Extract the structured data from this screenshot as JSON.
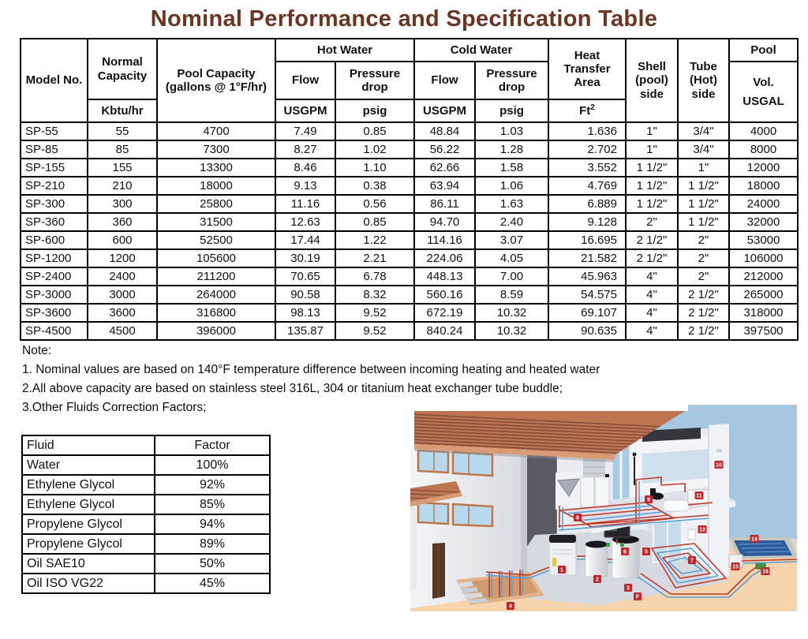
{
  "title": "Nominal Performance and Specification Table",
  "spec_table": {
    "header": {
      "model_no": "Model No.",
      "normal_capacity": "Normal Capacity",
      "normal_capacity_unit": "Kbtu/hr",
      "pool_capacity": "Pool Capacity (gallons @ 1°F/hr)",
      "hot_water": "Hot Water",
      "cold_water": "Cold Water",
      "flow": "Flow",
      "pressure_drop": "Pressure drop",
      "flow_unit": "USGPM",
      "pressure_unit": "psig",
      "heat_transfer_area": "Heat Transfer Area",
      "heat_area_unit_base": "Ft",
      "heat_area_unit_sup": "2",
      "shell_side": "Shell (pool) side",
      "tube_side": "Tube (Hot) side",
      "pool_label": "Pool",
      "pool_vol_line1": "Vol.",
      "pool_vol_line2": "USGAL"
    },
    "rows": [
      [
        "SP-55",
        "55",
        "4700",
        "7.49",
        "0.85",
        "48.84",
        "1.03",
        "1.636",
        "1\"",
        "3/4\"",
        "4000"
      ],
      [
        "SP-85",
        "85",
        "7300",
        "8.27",
        "1.02",
        "56.22",
        "1.28",
        "2.702",
        "1\"",
        "3/4\"",
        "8000"
      ],
      [
        "SP-155",
        "155",
        "13300",
        "8.46",
        "1.10",
        "62.66",
        "1.58",
        "3.552",
        "1 1/2\"",
        "1\"",
        "12000"
      ],
      [
        "SP-210",
        "210",
        "18000",
        "9.13",
        "0.38",
        "63.94",
        "1.06",
        "4.769",
        "1 1/2\"",
        "1 1/2\"",
        "18000"
      ],
      [
        "SP-300",
        "300",
        "25800",
        "11.16",
        "0.56",
        "86.11",
        "1.63",
        "6.889",
        "1 1/2\"",
        "1 1/2\"",
        "24000"
      ],
      [
        "SP-360",
        "360",
        "31500",
        "12.63",
        "0.85",
        "94.70",
        "2.40",
        "9.128",
        "2\"",
        "1 1/2\"",
        "32000"
      ],
      [
        "SP-600",
        "600",
        "52500",
        "17.44",
        "1.22",
        "114.16",
        "3.07",
        "16.695",
        "2 1/2\"",
        "2\"",
        "53000"
      ],
      [
        "SP-1200",
        "1200",
        "105600",
        "30.19",
        "2.21",
        "224.06",
        "4.05",
        "21.582",
        "2 1/2\"",
        "2\"",
        "106000"
      ],
      [
        "SP-2400",
        "2400",
        "211200",
        "70.65",
        "6.78",
        "448.13",
        "7.00",
        "45.963",
        "4\"",
        "2\"",
        "212000"
      ],
      [
        "SP-3000",
        "3000",
        "264000",
        "90.58",
        "8.32",
        "560.16",
        "8.59",
        "54.575",
        "4\"",
        "2 1/2\"",
        "265000"
      ],
      [
        "SP-3600",
        "3600",
        "316800",
        "98.13",
        "9.52",
        "672.19",
        "10.32",
        "69.107",
        "4\"",
        "2 1/2\"",
        "318000"
      ],
      [
        "SP-4500",
        "4500",
        "396000",
        "135.87",
        "9.52",
        "840.24",
        "10.32",
        "90.635",
        "4\"",
        "2 1/2\"",
        "397500"
      ]
    ]
  },
  "notes": {
    "label": "Note:",
    "items": [
      "1. Nominal values are based on 140°F temperature difference between incoming heating and heated water",
      "2.All above capacity are based on stainless steel 316L, 304 or titanium heat exchanger tube buddle;",
      "3.Other Fluids Correction Factors;"
    ]
  },
  "fluid_table": {
    "headers": [
      "Fluid",
      "Factor"
    ],
    "rows": [
      [
        "Water",
        "100%"
      ],
      [
        "Ethylene Glycol",
        "92%"
      ],
      [
        "Ethylene Glycol",
        "85%"
      ],
      [
        "Propylene Glycol",
        "94%"
      ],
      [
        "Propylene Glycol",
        "89%"
      ],
      [
        "Oil SAE10",
        "50%"
      ],
      [
        "Oil ISO VG22",
        "45%"
      ]
    ]
  },
  "illustration": {
    "badges": [
      "1",
      "2",
      "3",
      "4",
      "5",
      "6",
      "7",
      "8",
      "9",
      "10",
      "11",
      "12",
      "14",
      "15",
      "16",
      "F"
    ],
    "colors": {
      "sky": "#a5c7df",
      "sand": "#f6d4ae",
      "roof": "#bd7550",
      "roof_stripe": "#7e4a37",
      "pool_water": "#2b5c9e",
      "pipe_hot": "#c0392b",
      "pipe_cold": "#5b9fd4",
      "badge": "#c1272d",
      "title_text": "#6b3423"
    }
  }
}
